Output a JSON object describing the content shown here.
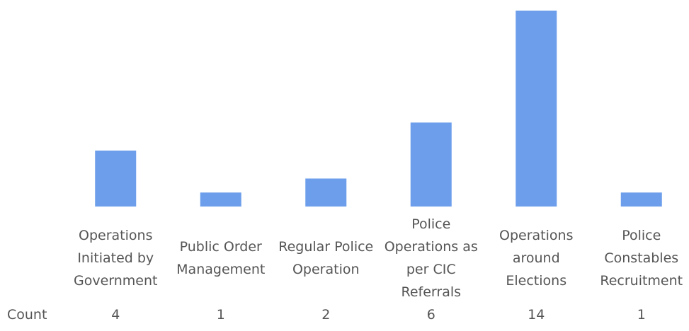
{
  "chart_data": {
    "type": "bar",
    "categories": [
      "Operations Initiated by Government",
      "Public Order Management",
      "Regular Police Operation",
      "Police Operations as per CIC Referrals",
      "Operations around Elections",
      "Police Constables Recruitment"
    ],
    "row_label": "Count",
    "values": [
      4,
      1,
      2,
      6,
      14,
      1
    ],
    "color": "#6d9eeb"
  }
}
